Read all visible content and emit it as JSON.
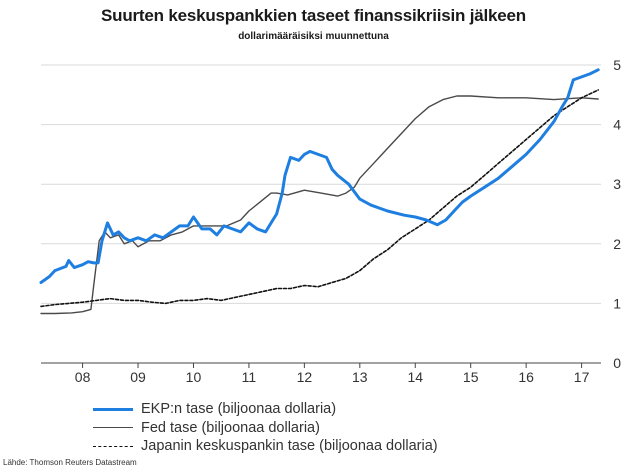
{
  "title": "Suurten keskuspankkien taseet finanssikriisin jälkeen",
  "subtitle": "dollarimääräisiksi muunnettuna",
  "source": "Lähde: Thomson Reuters Datastream",
  "colors": {
    "ecb": "#1e7fe0",
    "fed": "#4a4a4a",
    "boj": "#111111",
    "grid": "#d9d9d9"
  },
  "chart_data": {
    "type": "line",
    "title": "Suurten keskuspankkien taseet finanssikriisin jälkeen",
    "subtitle": "dollarimääräisiksi muunnettuna",
    "xlabel": "",
    "ylabel": "",
    "x_ticks": [
      "08",
      "09",
      "10",
      "11",
      "12",
      "13",
      "14",
      "15",
      "16",
      "17"
    ],
    "x_tick_values": [
      2008,
      2009,
      2010,
      2011,
      2012,
      2013,
      2014,
      2015,
      2016,
      2017
    ],
    "xlim": [
      2007.25,
      2017.35
    ],
    "y_ticks": [
      "0",
      "1",
      "2",
      "3",
      "4",
      "5"
    ],
    "ylim": [
      0,
      5
    ],
    "grid": true,
    "legend_position": "bottom-left",
    "series": [
      {
        "name": "EKP:n tase (biljoonaa dollaria)",
        "color": "#1e7fe0",
        "style": "solid",
        "x": [
          2007.25,
          2007.4,
          2007.5,
          2007.7,
          2007.75,
          2007.85,
          2008.0,
          2008.1,
          2008.2,
          2008.28,
          2008.35,
          2008.45,
          2008.55,
          2008.65,
          2008.75,
          2008.85,
          2009.0,
          2009.15,
          2009.3,
          2009.45,
          2009.6,
          2009.75,
          2009.9,
          2010.0,
          2010.15,
          2010.3,
          2010.42,
          2010.55,
          2010.7,
          2010.85,
          2011.0,
          2011.15,
          2011.3,
          2011.4,
          2011.5,
          2011.6,
          2011.65,
          2011.75,
          2011.9,
          2012.0,
          2012.1,
          2012.25,
          2012.4,
          2012.5,
          2012.6,
          2012.8,
          2013.0,
          2013.2,
          2013.5,
          2013.8,
          2014.0,
          2014.2,
          2014.4,
          2014.55,
          2014.7,
          2014.85,
          2015.0,
          2015.25,
          2015.5,
          2015.75,
          2016.0,
          2016.25,
          2016.5,
          2016.65,
          2016.75,
          2016.85,
          2017.0,
          2017.15,
          2017.3
        ],
        "y": [
          1.35,
          1.45,
          1.55,
          1.62,
          1.72,
          1.6,
          1.65,
          1.7,
          1.68,
          1.68,
          2.05,
          2.35,
          2.15,
          2.2,
          2.1,
          2.05,
          2.1,
          2.05,
          2.15,
          2.1,
          2.2,
          2.3,
          2.3,
          2.45,
          2.25,
          2.25,
          2.15,
          2.3,
          2.25,
          2.2,
          2.35,
          2.25,
          2.2,
          2.35,
          2.5,
          2.85,
          3.15,
          3.45,
          3.4,
          3.5,
          3.55,
          3.5,
          3.45,
          3.25,
          3.15,
          3.0,
          2.75,
          2.65,
          2.55,
          2.48,
          2.45,
          2.4,
          2.32,
          2.4,
          2.55,
          2.7,
          2.8,
          2.95,
          3.1,
          3.3,
          3.5,
          3.75,
          4.05,
          4.3,
          4.45,
          4.75,
          4.8,
          4.85,
          4.92
        ]
      },
      {
        "name": "Fed tase (biljoonaa dollaria)",
        "color": "#4a4a4a",
        "style": "solid",
        "x": [
          2007.25,
          2007.5,
          2007.8,
          2008.0,
          2008.15,
          2008.2,
          2008.3,
          2008.4,
          2008.5,
          2008.65,
          2008.75,
          2008.9,
          2009.0,
          2009.2,
          2009.4,
          2009.6,
          2009.8,
          2010.0,
          2010.3,
          2010.6,
          2010.85,
          2011.0,
          2011.2,
          2011.4,
          2011.5,
          2011.7,
          2012.0,
          2012.3,
          2012.6,
          2012.75,
          2012.9,
          2013.0,
          2013.25,
          2013.5,
          2013.75,
          2014.0,
          2014.25,
          2014.5,
          2014.75,
          2015.0,
          2015.5,
          2016.0,
          2016.5,
          2017.0,
          2017.3
        ],
        "y": [
          0.83,
          0.83,
          0.84,
          0.86,
          0.9,
          1.3,
          2.05,
          2.2,
          2.1,
          2.15,
          2.0,
          2.05,
          1.95,
          2.05,
          2.05,
          2.15,
          2.2,
          2.3,
          2.3,
          2.3,
          2.4,
          2.55,
          2.7,
          2.85,
          2.85,
          2.82,
          2.9,
          2.85,
          2.8,
          2.85,
          2.95,
          3.1,
          3.35,
          3.6,
          3.85,
          4.1,
          4.3,
          4.42,
          4.48,
          4.48,
          4.45,
          4.45,
          4.42,
          4.45,
          4.43
        ]
      },
      {
        "name": "Japanin keskuspankin tase (biljoonaa dollaria)",
        "color": "#111111",
        "style": "dashed",
        "x": [
          2007.25,
          2007.5,
          2007.75,
          2008.0,
          2008.25,
          2008.5,
          2008.75,
          2009.0,
          2009.25,
          2009.5,
          2009.75,
          2010.0,
          2010.25,
          2010.5,
          2010.75,
          2011.0,
          2011.25,
          2011.5,
          2011.75,
          2012.0,
          2012.25,
          2012.5,
          2012.75,
          2013.0,
          2013.25,
          2013.5,
          2013.75,
          2014.0,
          2014.25,
          2014.5,
          2014.75,
          2015.0,
          2015.25,
          2015.5,
          2015.75,
          2016.0,
          2016.25,
          2016.5,
          2016.75,
          2017.0,
          2017.3
        ],
        "y": [
          0.95,
          0.98,
          1.0,
          1.02,
          1.05,
          1.08,
          1.05,
          1.05,
          1.02,
          1.0,
          1.05,
          1.05,
          1.08,
          1.05,
          1.1,
          1.15,
          1.2,
          1.25,
          1.25,
          1.3,
          1.28,
          1.35,
          1.42,
          1.55,
          1.75,
          1.9,
          2.1,
          2.25,
          2.4,
          2.6,
          2.8,
          2.95,
          3.15,
          3.35,
          3.55,
          3.75,
          3.95,
          4.15,
          4.3,
          4.45,
          4.58
        ]
      }
    ]
  }
}
